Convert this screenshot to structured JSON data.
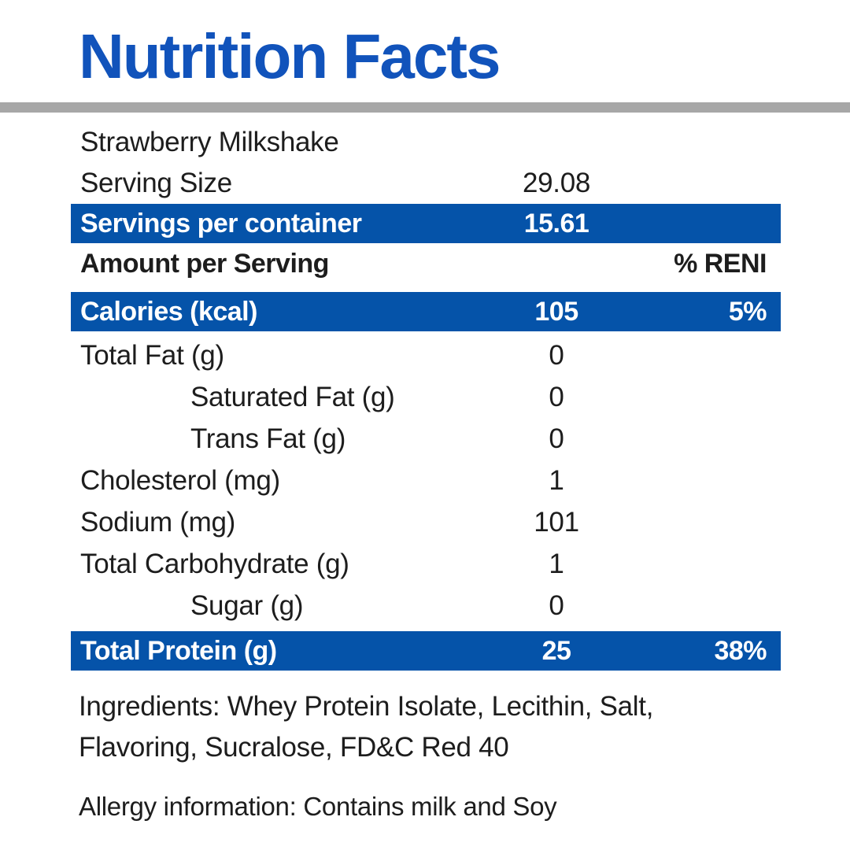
{
  "title": "Nutrition Facts",
  "colors": {
    "accent": "#0553A9",
    "title_blue": "#1153BB",
    "divider_gray": "#A7A7A7"
  },
  "product": {
    "name": "Strawberry Milkshake"
  },
  "serving": {
    "size_label": "Serving Size",
    "size_value": "29.08",
    "per_container_label": "Servings per container",
    "per_container_value": "15.61"
  },
  "table_header": {
    "amount_label": "Amount per Serving",
    "percent_label": "% RENI"
  },
  "rows": [
    {
      "label": "Calories (kcal)",
      "value": "105",
      "percent": "5%"
    },
    {
      "label": "Total Fat (g)",
      "value": "0",
      "percent": ""
    },
    {
      "label": "Saturated Fat (g)",
      "value": "0",
      "percent": ""
    },
    {
      "label": "Trans Fat (g)",
      "value": "0",
      "percent": ""
    },
    {
      "label": "Cholesterol (mg)",
      "value": "1",
      "percent": ""
    },
    {
      "label": "Sodium (mg)",
      "value": "101",
      "percent": ""
    },
    {
      "label": "Total Carbohydrate (g)",
      "value": "1",
      "percent": ""
    },
    {
      "label": "Sugar (g)",
      "value": "0",
      "percent": ""
    },
    {
      "label": "Total Protein (g)",
      "value": "25",
      "percent": "38%"
    }
  ],
  "ingredients": "Ingredients: Whey Protein Isolate, Lecithin, Salt, Flavoring, Sucralose, FD&C Red 40",
  "allergy": "Allergy information: Contains milk and Soy"
}
